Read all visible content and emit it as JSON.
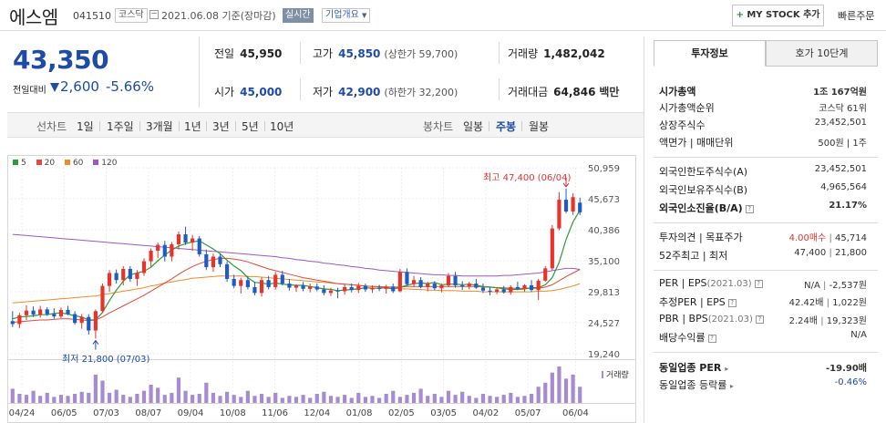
{
  "header": {
    "company": "에스엠",
    "code": "041510",
    "market": "코스닥",
    "base_date": "2021.06.08 기준(장마감)",
    "realtime": "실시간",
    "overview": "기업개요",
    "overview_icon": "chevron-down-icon",
    "mystock": "MY STOCK 추가",
    "mystock_plus": "+",
    "quick_order": "빠른주문"
  },
  "price": {
    "current": "43,350",
    "change_label": "전일대비",
    "change": "2,600",
    "change_pct": "-5.66%",
    "direction_icon": "down-triangle-icon",
    "color": "#1d4ba8"
  },
  "stats": {
    "prev_close": {
      "k": "전일",
      "v": "45,950"
    },
    "high": {
      "k": "고가",
      "v": "45,850",
      "sub": "(상한가 59,700)"
    },
    "volume": {
      "k": "거래량",
      "v": "1,482,042"
    },
    "open": {
      "k": "시가",
      "v": "45,000"
    },
    "low": {
      "k": "저가",
      "v": "42,900",
      "sub": "(하한가 32,200)"
    },
    "amount": {
      "k": "거래대금",
      "v": "64,846",
      "unit": "백만"
    }
  },
  "period_bar": {
    "line_label": "선차트",
    "periods": [
      "1일",
      "1주일",
      "3개월",
      "1년",
      "3년",
      "5년",
      "10년"
    ],
    "candle_label": "봉차트",
    "candles": [
      "일봉",
      "주봉",
      "월봉"
    ],
    "candle_selected": "주봉"
  },
  "chart_data": {
    "type": "candlestick",
    "ma_legend": [
      {
        "name": "5",
        "color": "#2e9a3a"
      },
      {
        "name": "20",
        "color": "#e04a3a"
      },
      {
        "name": "60",
        "color": "#f08a2a"
      },
      {
        "name": "120",
        "color": "#9b59c6"
      }
    ],
    "y_ticks": [
      "50,959",
      "45,673",
      "40,386",
      "35,100",
      "29,813",
      "24,527",
      "19,240"
    ],
    "ylim": [
      19240,
      50959
    ],
    "x_ticks": [
      "04/24",
      "06/05",
      "07/03",
      "08/07",
      "09/04",
      "10/08",
      "11/06",
      "12/04",
      "01/08",
      "02/05",
      "03/05",
      "04/02",
      "05/07",
      "06/04"
    ],
    "high_annotation": "최고 47,400 (06/04)",
    "low_annotation": "최저 21,800 (07/03)",
    "volume_label": "거래량",
    "colors": {
      "up": "#e8332a",
      "down": "#1e5bc6",
      "volume": "#a78bd0"
    },
    "candles": [
      [
        24800,
        26500,
        23800,
        24300
      ],
      [
        24300,
        26200,
        23600,
        25800
      ],
      [
        25800,
        27500,
        25000,
        26600
      ],
      [
        26600,
        27300,
        25500,
        25900
      ],
      [
        25900,
        27400,
        25400,
        26800
      ],
      [
        26800,
        27200,
        25700,
        26000
      ],
      [
        26000,
        27000,
        25200,
        25600
      ],
      [
        25600,
        27100,
        25300,
        26700
      ],
      [
        26700,
        27400,
        25800,
        26000
      ],
      [
        26000,
        26500,
        24200,
        24500
      ],
      [
        24500,
        26000,
        23500,
        25500
      ],
      [
        25500,
        26000,
        22500,
        23200
      ],
      [
        23200,
        26800,
        21800,
        26500
      ],
      [
        26500,
        31200,
        26200,
        30800
      ],
      [
        30800,
        33500,
        29800,
        33000
      ],
      [
        33000,
        33600,
        31200,
        31800
      ],
      [
        31800,
        34200,
        30900,
        33700
      ],
      [
        33700,
        34200,
        31500,
        32000
      ],
      [
        32000,
        33500,
        30800,
        33000
      ],
      [
        33000,
        35500,
        32500,
        35000
      ],
      [
        35000,
        37200,
        34000,
        36800
      ],
      [
        36800,
        38200,
        35500,
        37800
      ],
      [
        37800,
        38500,
        35000,
        35800
      ],
      [
        35800,
        38300,
        35000,
        37900
      ],
      [
        37900,
        40100,
        37000,
        39600
      ],
      [
        39600,
        40900,
        37800,
        38200
      ],
      [
        38200,
        39500,
        36800,
        38900
      ],
      [
        38900,
        39300,
        35800,
        36200
      ],
      [
        36200,
        37000,
        33500,
        34000
      ],
      [
        34000,
        36300,
        33200,
        35800
      ],
      [
        35800,
        36400,
        34000,
        34500
      ],
      [
        34500,
        35000,
        31500,
        32000
      ],
      [
        32000,
        32700,
        30400,
        30800
      ],
      [
        30800,
        32200,
        29500,
        31800
      ],
      [
        31800,
        32500,
        30200,
        30600
      ],
      [
        30600,
        31500,
        29200,
        29600
      ],
      [
        29600,
        32300,
        29000,
        31800
      ],
      [
        31800,
        32500,
        30200,
        30600
      ],
      [
        30600,
        33200,
        30200,
        32700
      ],
      [
        32700,
        33400,
        30900,
        31200
      ],
      [
        31200,
        32000,
        30000,
        30500
      ],
      [
        30500,
        31100,
        29800,
        30900
      ],
      [
        30900,
        31500,
        29900,
        30300
      ],
      [
        30300,
        31200,
        29700,
        30700
      ],
      [
        30700,
        31200,
        29900,
        30200
      ],
      [
        30200,
        30900,
        29200,
        29600
      ],
      [
        29600,
        30500,
        29100,
        30000
      ],
      [
        30000,
        30500,
        28700,
        29900
      ],
      [
        29900,
        31000,
        29300,
        30600
      ],
      [
        30600,
        31200,
        29700,
        30100
      ],
      [
        30100,
        31300,
        29600,
        30800
      ],
      [
        30800,
        31200,
        29800,
        30200
      ],
      [
        30200,
        30900,
        29600,
        30500
      ],
      [
        30500,
        31000,
        29900,
        30300
      ],
      [
        30300,
        31000,
        29500,
        30700
      ],
      [
        30700,
        31200,
        29600,
        29900
      ],
      [
        29900,
        33700,
        29700,
        33200
      ],
      [
        33200,
        33800,
        30800,
        31100
      ],
      [
        31100,
        32500,
        30600,
        31800
      ],
      [
        31800,
        32300,
        30400,
        30600
      ],
      [
        30600,
        31500,
        29900,
        31200
      ],
      [
        31200,
        31600,
        30100,
        30400
      ],
      [
        30400,
        31200,
        29700,
        30900
      ],
      [
        30900,
        33000,
        30600,
        32500
      ],
      [
        32500,
        33200,
        30500,
        30900
      ],
      [
        30900,
        31600,
        30100,
        30700
      ],
      [
        30700,
        31500,
        30200,
        31200
      ],
      [
        31200,
        32000,
        30300,
        30500
      ],
      [
        30500,
        31200,
        29600,
        30000
      ],
      [
        30000,
        30600,
        29200,
        29800
      ],
      [
        29800,
        30500,
        29400,
        30200
      ],
      [
        30200,
        30800,
        29500,
        29700
      ],
      [
        29700,
        30900,
        29300,
        30600
      ],
      [
        30600,
        31500,
        30100,
        30300
      ],
      [
        30300,
        31100,
        29800,
        30900
      ],
      [
        30900,
        31800,
        29800,
        30100
      ],
      [
        30100,
        32000,
        28400,
        31700
      ],
      [
        31700,
        34200,
        31500,
        33800
      ],
      [
        33800,
        41200,
        33500,
        40600
      ],
      [
        40600,
        46800,
        40300,
        45500
      ],
      [
        45500,
        47400,
        43200,
        43500
      ],
      [
        43500,
        46600,
        42900,
        45950
      ],
      [
        45000,
        45850,
        42900,
        43350
      ]
    ],
    "ma5": [
      25200,
      25500,
      25600,
      25700,
      25900,
      25900,
      26100,
      26200,
      26000,
      25700,
      25500,
      25000,
      25000,
      26300,
      28300,
      30100,
      31600,
      32700,
      33000,
      33300,
      34000,
      35100,
      36100,
      36900,
      37600,
      38000,
      38300,
      38500,
      37800,
      37100,
      36300,
      35200,
      34200,
      33400,
      32200,
      31400,
      31300,
      31100,
      31300,
      31100,
      31000,
      30900,
      30900,
      30700,
      30500,
      30300,
      30200,
      30000,
      30100,
      30200,
      30300,
      30500,
      30400,
      30400,
      30500,
      30300,
      30600,
      30900,
      31200,
      31300,
      31200,
      31400,
      31000,
      31100,
      31100,
      31000,
      31100,
      30900,
      30700,
      30600,
      30500,
      30300,
      30200,
      30200,
      30300,
      30500,
      30500,
      31000,
      32200,
      34800,
      38700,
      41700,
      43700
    ],
    "ma20": [
      24600,
      24700,
      24800,
      24900,
      25000,
      25000,
      25100,
      25200,
      25200,
      25100,
      25000,
      24900,
      25000,
      25500,
      26200,
      26800,
      27400,
      28000,
      28600,
      29200,
      29900,
      30600,
      31300,
      32000,
      32800,
      33500,
      34100,
      34600,
      35000,
      35300,
      35500,
      35500,
      35400,
      35200,
      34900,
      34500,
      34100,
      33700,
      33400,
      33100,
      32800,
      32500,
      32200,
      32000,
      31800,
      31600,
      31400,
      31200,
      31100,
      31000,
      30900,
      30800,
      30700,
      30700,
      30600,
      30600,
      30600,
      30700,
      30700,
      30700,
      30700,
      30700,
      30700,
      30700,
      30700,
      30700,
      30700,
      30700,
      30600,
      30600,
      30500,
      30500,
      30400,
      30400,
      30400,
      30400,
      30400,
      30600,
      31000,
      31700,
      32400,
      33000,
      33600
    ],
    "ma60": [
      27900,
      28000,
      28100,
      28200,
      28300,
      28400,
      28500,
      28600,
      28700,
      28800,
      28900,
      29000,
      29100,
      29300,
      29500,
      29700,
      29900,
      30100,
      30300,
      30500,
      30800,
      31000,
      31300,
      31500,
      31700,
      31900,
      32100,
      32200,
      32300,
      32400,
      32500,
      32500,
      32500,
      32500,
      32400,
      32400,
      32300,
      32200,
      32100,
      32000,
      31900,
      31800,
      31700,
      31600,
      31500,
      31400,
      31300,
      31200,
      31100,
      31000,
      30900,
      30800,
      30700,
      30600,
      30500,
      30400,
      30300,
      30300,
      30200,
      30200,
      30100,
      30100,
      30000,
      30000,
      30000,
      29900,
      29900,
      29900,
      29800,
      29800,
      29800,
      29800,
      29800,
      29800,
      29800,
      29800,
      29900,
      29900,
      30000,
      30200,
      30500,
      30800,
      31200
    ],
    "ma120": [
      39600,
      39500,
      39400,
      39300,
      39200,
      39100,
      39000,
      38900,
      38800,
      38700,
      38600,
      38500,
      38400,
      38300,
      38200,
      38100,
      38000,
      37900,
      37800,
      37700,
      37600,
      37500,
      37400,
      37300,
      37200,
      37100,
      37000,
      36900,
      36800,
      36700,
      36600,
      36500,
      36400,
      36300,
      36200,
      36100,
      36000,
      35900,
      35800,
      35600,
      35500,
      35300,
      35200,
      35000,
      34900,
      34700,
      34600,
      34400,
      34300,
      34100,
      34000,
      33800,
      33700,
      33500,
      33400,
      33300,
      33200,
      33100,
      33000,
      32900,
      32800,
      32700,
      32700,
      32600,
      32600,
      32500,
      32500,
      32500,
      32500,
      32500,
      32500,
      32600,
      32600,
      32700,
      32800,
      32900,
      33000,
      33200,
      33400,
      33600,
      33800,
      33800,
      33600
    ],
    "volume": [
      14,
      9,
      8,
      12,
      7,
      10,
      6,
      8,
      7,
      9,
      11,
      10,
      28,
      22,
      10,
      13,
      8,
      6,
      9,
      12,
      18,
      15,
      8,
      10,
      25,
      12,
      8,
      9,
      20,
      10,
      7,
      11,
      8,
      6,
      12,
      7,
      9,
      6,
      10,
      5,
      7,
      6,
      8,
      5,
      9,
      11,
      7,
      6,
      8,
      5,
      10,
      6,
      7,
      5,
      9,
      12,
      6,
      8,
      10,
      14,
      7,
      9,
      6,
      12,
      8,
      11,
      7,
      5,
      9,
      7,
      6,
      8,
      10,
      6,
      7,
      9,
      16,
      20,
      30,
      36,
      24,
      28,
      16
    ]
  },
  "right_panel": {
    "tab_on": "투자정보",
    "tab_off": "호가 10단계",
    "rows": [
      {
        "k": "시가총액",
        "v": "1조 167억원",
        "bold": true
      },
      {
        "k": "시가총액순위",
        "v": "코스닥 61위"
      },
      {
        "k": "상장주식수",
        "v": "23,452,501"
      },
      {
        "k": "액면가 | 매매단위",
        "v": "500원 | 1주"
      },
      {
        "k": "외국인한도주식수(A)",
        "v": "23,452,501"
      },
      {
        "k": "외국인보유주식수(B)",
        "v": "4,965,564"
      },
      {
        "k": "외국인소진율(B/A)",
        "v": "21.17%",
        "bold": true,
        "hint": "?"
      },
      {
        "k": "투자의견 | 목표주가",
        "v1": "4.00매수",
        "v2": "45,714"
      },
      {
        "k": "52주최고 | 최저",
        "v1": "47,400",
        "v2": "21,800"
      },
      {
        "k": "PER | EPS",
        "paren": "(2021.03)",
        "v1": "N/A",
        "v2": "-2,537원",
        "hint": "?"
      },
      {
        "k": "추정PER | EPS",
        "v1": "42.42배",
        "v2": "1,022원",
        "hint": "?"
      },
      {
        "k": "PBR | BPS",
        "paren": "(2021.03)",
        "v1": "2.24배",
        "v2": "19,323원",
        "hint": "?"
      },
      {
        "k": "배당수익률",
        "v": "N/A",
        "hint": "?"
      },
      {
        "k": "동일업종 PER",
        "v": "-19.90배",
        "bold": true,
        "arrow": "▸"
      },
      {
        "k": "동일업종 등락률",
        "v": "-0.46%",
        "arrow": "▸"
      }
    ]
  }
}
